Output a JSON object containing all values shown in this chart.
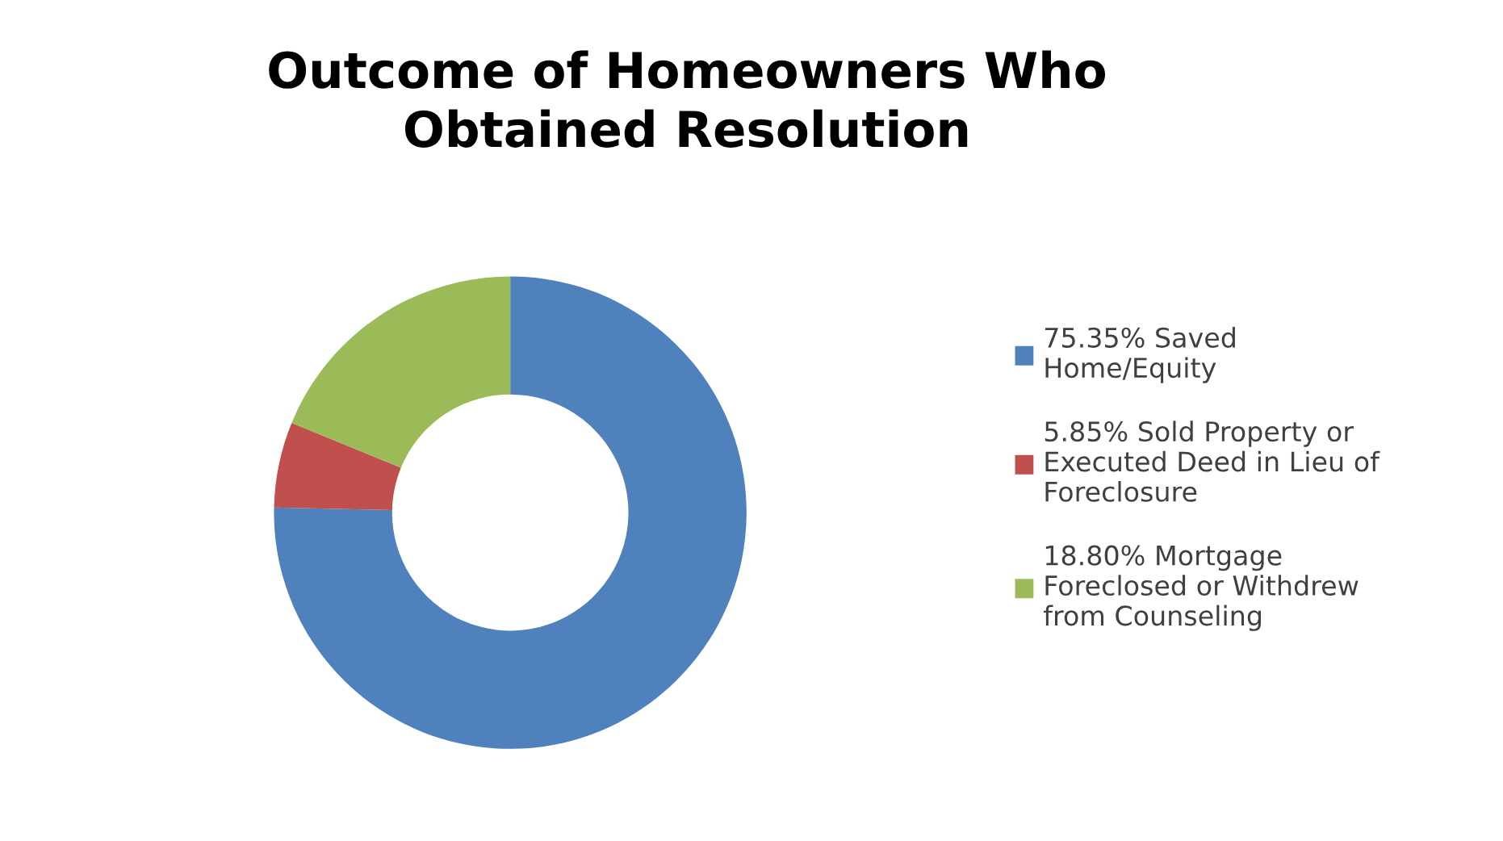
{
  "chart_data": {
    "type": "donut",
    "title": "Outcome of Homeowners Who\nObtained Resolution",
    "categories": [
      "75.35% Saved\nHome/Equity",
      "5.85% Sold Property or\nExecuted Deed in Lieu of\nForeclosure",
      "18.80% Mortgage\nForeclosed or Withdrew\nfrom Counseling"
    ],
    "values": [
      75.35,
      5.85,
      18.8
    ],
    "colors": [
      "#4f81bd",
      "#c0504d",
      "#9bbb59"
    ],
    "legend": "right"
  }
}
